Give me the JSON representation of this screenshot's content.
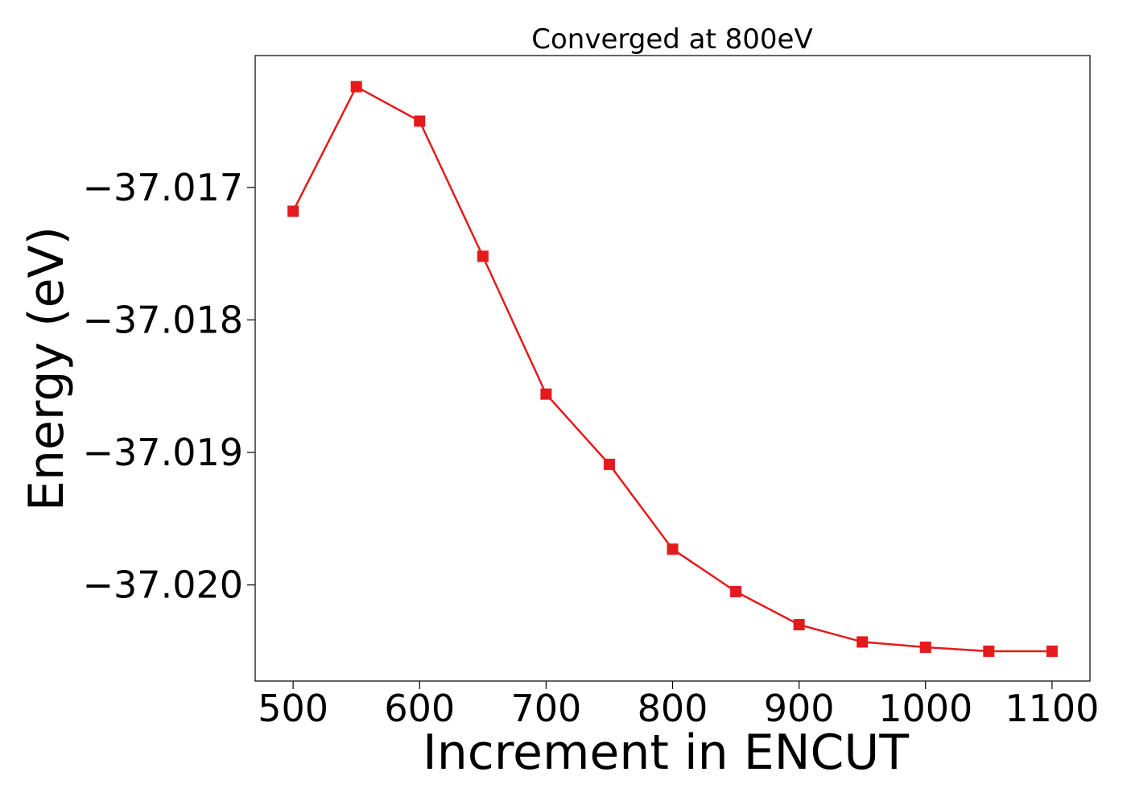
{
  "chart_data": {
    "type": "line",
    "title": "Converged at 800eV",
    "xlabel": "Increment in ENCUT",
    "ylabel": "Energy (eV)",
    "x": [
      500,
      550,
      600,
      650,
      700,
      750,
      800,
      850,
      900,
      950,
      1000,
      1050,
      1100
    ],
    "series": [
      {
        "values": [
          -37.01718,
          -37.01624,
          -37.0165,
          -37.01752,
          -37.01856,
          -37.01909,
          -37.01973,
          -37.02005,
          -37.0203,
          -37.02043,
          -37.02047,
          -37.0205,
          -37.0205
        ],
        "color": "#e41a1c",
        "marker": "square"
      }
    ],
    "xticks": [
      500,
      600,
      700,
      800,
      900,
      1000,
      1100
    ],
    "xtick_labels": [
      "500",
      "600",
      "700",
      "800",
      "900",
      "1000",
      "1100"
    ],
    "yticks": [
      -37.017,
      -37.018,
      -37.019,
      -37.02
    ],
    "ytick_labels": [
      "−37.017",
      "−37.018",
      "−37.019",
      "−37.020"
    ],
    "xlim": [
      470,
      1130
    ],
    "ylim": [
      -37.020725,
      -37.016005
    ],
    "grid": false,
    "legend": "none"
  }
}
